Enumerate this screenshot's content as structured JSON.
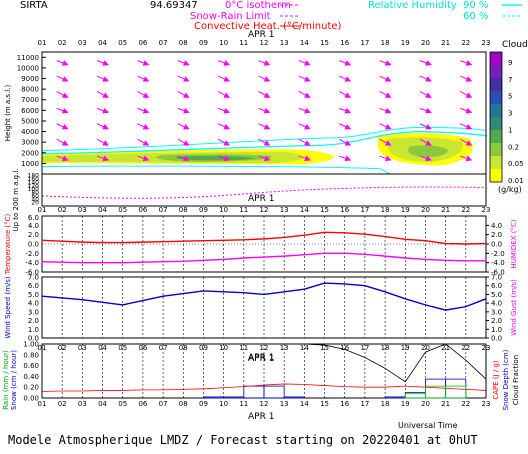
{
  "header": {
    "site": "SIRTA",
    "coords": "94.69347",
    "legend_isotherm": "0°C isotherm",
    "legend_snowrain": "Snow-Rain Limit",
    "legend_convective": "Convective Heat. (°C/minute)",
    "legend_rh": "Relative Humidity",
    "rh_90": "90 %",
    "rh_60": "60 %",
    "date_label": "APR 1",
    "clouds_label": "Clouds",
    "clouds_unit": "(g/kg)"
  },
  "colors": {
    "magenta": "#ff00ff",
    "cyan": "#00ffff",
    "red": "#ff0000",
    "blue": "#0000cc",
    "cloud_scale": [
      "#ffff00",
      "#c8e632",
      "#8cc83c",
      "#50aa50",
      "#308c6e",
      "#207896",
      "#2850b4",
      "#4030a0",
      "#7820b4",
      "#a000c8"
    ]
  },
  "footer": {
    "title": "Modele Atmospherique LMDZ / Forecast starting on 20220401 at 0hUT",
    "universal_time": "Universal Time"
  },
  "chart_data": [
    {
      "type": "heatmap",
      "name": "cloud-wind-cross-section",
      "title": "",
      "xlabel": "",
      "ylabel": "Height (m a.s.l.)",
      "ylabel2": "Up to 200 m a.g.l.",
      "x_ticks": [
        "01",
        "02",
        "03",
        "04",
        "05",
        "06",
        "07",
        "08",
        "09",
        "10",
        "11",
        "12",
        "13",
        "14",
        "15",
        "16",
        "17",
        "18",
        "19",
        "20",
        "21",
        "22",
        "23"
      ],
      "y_ticks_upper": [
        11000,
        10000,
        9000,
        8000,
        7000,
        6000,
        5000,
        4000,
        3000,
        2000,
        1000
      ],
      "y_ticks_lower": [
        180,
        160,
        140,
        120,
        100,
        80,
        60,
        40,
        20
      ],
      "cloud_colorbar_ticks": [
        "9",
        "7",
        "5",
        "3",
        "1",
        "0.2",
        "0.05",
        "0.01"
      ],
      "legend": "Clouds (g/kg)"
    },
    {
      "type": "line",
      "name": "temperature",
      "ylabel": "Temperature (°C)",
      "ylabel_right": "HUMIDEX (°C)",
      "y_ticks": [
        "4.0",
        "2.0",
        "0.0",
        "-2.0",
        "-4.0",
        "-6.0"
      ],
      "y_ticks_top": "6.0",
      "ylim": [
        -6,
        6
      ],
      "x": [
        "01",
        "02",
        "03",
        "04",
        "05",
        "06",
        "07",
        "08",
        "09",
        "10",
        "11",
        "12",
        "13",
        "14",
        "15",
        "16",
        "17",
        "18",
        "19",
        "20",
        "21",
        "22",
        "23"
      ],
      "series": [
        {
          "name": "Temperature",
          "color": "#ff0000",
          "values": [
            0.8,
            0.6,
            0.4,
            0.3,
            0.3,
            0.4,
            0.5,
            0.6,
            0.7,
            0.8,
            0.9,
            1.1,
            1.4,
            1.9,
            2.5,
            2.4,
            2.1,
            1.6,
            1.0,
            0.7,
            0.1,
            0.0,
            0.1
          ]
        },
        {
          "name": "HUMIDEX",
          "color": "#ff00ff",
          "values": [
            -3.8,
            -3.9,
            -4.0,
            -4.0,
            -4.0,
            -3.9,
            -3.8,
            -3.7,
            -3.5,
            -3.3,
            -3.0,
            -2.8,
            -2.6,
            -2.3,
            -2.0,
            -2.0,
            -2.2,
            -2.6,
            -3.0,
            -3.3,
            -3.5,
            -3.6,
            -3.6
          ]
        }
      ]
    },
    {
      "type": "line",
      "name": "wind",
      "ylabel": "Wind Speed (m/s)",
      "ylabel_right": "Wind Gust (m/s)",
      "y_ticks": [
        "7.0",
        "6.0",
        "5.0",
        "4.0",
        "3.0",
        "2.0",
        "1.0",
        "0.0"
      ],
      "ylim": [
        0,
        7
      ],
      "x": [
        "01",
        "02",
        "03",
        "04",
        "05",
        "06",
        "07",
        "08",
        "09",
        "10",
        "11",
        "12",
        "13",
        "14",
        "15",
        "16",
        "17",
        "18",
        "19",
        "20",
        "21",
        "22",
        "23"
      ],
      "series": [
        {
          "name": "Wind Speed",
          "color": "#0000cc",
          "values": [
            4.8,
            4.6,
            4.4,
            4.1,
            3.8,
            4.3,
            4.8,
            5.1,
            5.4,
            5.3,
            5.2,
            5.0,
            5.3,
            5.6,
            6.3,
            6.2,
            6.0,
            5.3,
            4.5,
            3.8,
            3.2,
            3.6,
            4.5
          ]
        }
      ]
    },
    {
      "type": "bar",
      "name": "precipitation",
      "ylabel": "Rain (mm / hour)",
      "ylabel2": "Snow (cm / hour)",
      "ylabel_right": "CAPE (J / g)",
      "ylabel_right2": "Snow Depth (cm)",
      "ylabel_right3": "Cloud Fraction",
      "y_ticks": [
        "1.00",
        "0.80",
        "0.60",
        "0.40",
        "0.20",
        "0.00"
      ],
      "ylim": [
        0,
        1
      ],
      "x": [
        "01",
        "02",
        "03",
        "04",
        "05",
        "06",
        "07",
        "08",
        "09",
        "10",
        "11",
        "12",
        "13",
        "14",
        "15",
        "16",
        "17",
        "18",
        "19",
        "20",
        "21",
        "22",
        "23"
      ],
      "series": [
        {
          "name": "Rain",
          "color": "#0000cc",
          "values": [
            0.0,
            0.0,
            0.0,
            0.0,
            0.0,
            0.0,
            0.0,
            0.0,
            0.02,
            0.02,
            0.22,
            0.22,
            0.02,
            0.0,
            0.0,
            0.0,
            0.0,
            0.02,
            0.1,
            0.35,
            0.35,
            0.0,
            0.0
          ]
        },
        {
          "name": "Snow",
          "color": "#00cc00",
          "values": [
            0.0,
            0.0,
            0.0,
            0.0,
            0.0,
            0.0,
            0.0,
            0.0,
            0.0,
            0.0,
            0.0,
            0.0,
            0.0,
            0.0,
            0.0,
            0.0,
            0.0,
            0.0,
            0.08,
            0.22,
            0.22,
            0.0,
            0.0
          ]
        },
        {
          "name": "CAPE",
          "color": "#ff0000",
          "values": [
            0.12,
            0.13,
            0.13,
            0.14,
            0.14,
            0.15,
            0.15,
            0.16,
            0.17,
            0.19,
            0.21,
            0.24,
            0.26,
            0.25,
            0.23,
            0.21,
            0.2,
            0.2,
            0.22,
            0.2,
            0.18,
            0.16,
            0.14
          ]
        },
        {
          "name": "Cloud Fraction",
          "color": "#000000",
          "values": [
            null,
            null,
            null,
            null,
            null,
            null,
            null,
            null,
            null,
            null,
            null,
            null,
            null,
            1.0,
            0.98,
            0.9,
            0.75,
            0.55,
            0.3,
            0.85,
            1.0,
            0.7,
            0.35
          ]
        }
      ]
    }
  ]
}
